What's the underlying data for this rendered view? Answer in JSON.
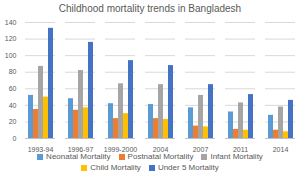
{
  "chart_data": {
    "type": "bar",
    "title": "Childhood mortality trends in Bangladesh",
    "categories": [
      "1993-94",
      "1996-97",
      "1999-2000",
      "2004",
      "2007",
      "2011",
      "2014"
    ],
    "series": [
      {
        "name": "Neonatal Mortality",
        "color": "#5b9bd5",
        "values": [
          52,
          48,
          42,
          41,
          37,
          32,
          28
        ]
      },
      {
        "name": "Postnatal Mortality",
        "color": "#ed7d31",
        "values": [
          35,
          34,
          24,
          24,
          15,
          11,
          10
        ]
      },
      {
        "name": "Infant Mortality",
        "color": "#a5a5a5",
        "values": [
          87,
          82,
          66,
          65,
          52,
          43,
          38
        ]
      },
      {
        "name": "Child Mortality",
        "color": "#ffc000",
        "values": [
          50,
          37,
          30,
          23,
          14,
          10,
          8
        ]
      },
      {
        "name": "Under 5 Mortality",
        "color": "#4472c4",
        "values": [
          133,
          116,
          94,
          88,
          65,
          53,
          46
        ]
      }
    ],
    "ylim": [
      0,
      140
    ],
    "yticks": [
      0,
      20,
      40,
      60,
      80,
      100,
      120,
      140
    ],
    "grid": true,
    "legend": "bottom"
  }
}
